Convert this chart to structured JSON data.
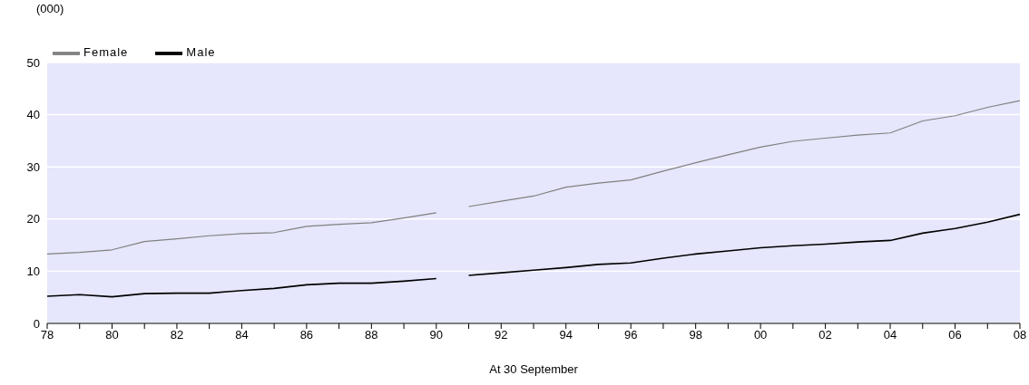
{
  "chart_data": {
    "type": "line",
    "ylabel": "(000)",
    "xlabel": "At 30 September",
    "x": [
      1978,
      1979,
      1980,
      1981,
      1982,
      1983,
      1984,
      1985,
      1986,
      1987,
      1988,
      1989,
      1990,
      1990.5,
      1991,
      1992,
      1993,
      1994,
      1995,
      1996,
      1997,
      1998,
      1999,
      2000,
      2001,
      2002,
      2003,
      2004,
      2005,
      2006,
      2007,
      2008
    ],
    "series": [
      {
        "name": "Female",
        "color": "#808080",
        "values": [
          13.3,
          13.6,
          14.1,
          15.7,
          16.2,
          16.8,
          17.2,
          17.4,
          18.6,
          19.0,
          19.3,
          20.2,
          21.2,
          null,
          22.4,
          23.4,
          24.4,
          26.1,
          26.9,
          27.5,
          29.2,
          30.8,
          32.3,
          33.8,
          34.9,
          35.5,
          36.1,
          36.5,
          38.8,
          39.8,
          41.4,
          42.7
        ]
      },
      {
        "name": "Male",
        "color": "#000000",
        "values": [
          5.2,
          5.5,
          5.1,
          5.7,
          5.8,
          5.8,
          6.3,
          6.7,
          7.4,
          7.7,
          7.7,
          8.1,
          8.6,
          null,
          9.2,
          9.7,
          10.2,
          10.7,
          11.3,
          11.6,
          12.5,
          13.3,
          13.9,
          14.5,
          14.9,
          15.2,
          15.6,
          15.9,
          17.3,
          18.2,
          19.4,
          20.9
        ]
      }
    ],
    "xlim": [
      1978,
      2008
    ],
    "xticks": [
      {
        "value": 1978,
        "label": "78"
      },
      {
        "value": 1979,
        "label": null
      },
      {
        "value": 1980,
        "label": "80"
      },
      {
        "value": 1981,
        "label": null
      },
      {
        "value": 1982,
        "label": "82"
      },
      {
        "value": 1983,
        "label": null
      },
      {
        "value": 1984,
        "label": "84"
      },
      {
        "value": 1985,
        "label": null
      },
      {
        "value": 1986,
        "label": "86"
      },
      {
        "value": 1987,
        "label": null
      },
      {
        "value": 1988,
        "label": "88"
      },
      {
        "value": 1989,
        "label": null
      },
      {
        "value": 1990,
        "label": "90"
      },
      {
        "value": 1991,
        "label": null
      },
      {
        "value": 1992,
        "label": "92"
      },
      {
        "value": 1993,
        "label": null
      },
      {
        "value": 1994,
        "label": "94"
      },
      {
        "value": 1995,
        "label": null
      },
      {
        "value": 1996,
        "label": "96"
      },
      {
        "value": 1997,
        "label": null
      },
      {
        "value": 1998,
        "label": "98"
      },
      {
        "value": 1999,
        "label": null
      },
      {
        "value": 2000,
        "label": "00"
      },
      {
        "value": 2001,
        "label": null
      },
      {
        "value": 2002,
        "label": "02"
      },
      {
        "value": 2003,
        "label": null
      },
      {
        "value": 2004,
        "label": "04"
      },
      {
        "value": 2005,
        "label": null
      },
      {
        "value": 2006,
        "label": "06"
      },
      {
        "value": 2007,
        "label": null
      },
      {
        "value": 2008,
        "label": "08"
      }
    ],
    "ylim": [
      0,
      50
    ],
    "yticks": [
      0,
      10,
      20,
      30,
      40,
      50
    ],
    "grid": "y",
    "legend": "top left",
    "marker": "none",
    "line_style": "solid"
  }
}
